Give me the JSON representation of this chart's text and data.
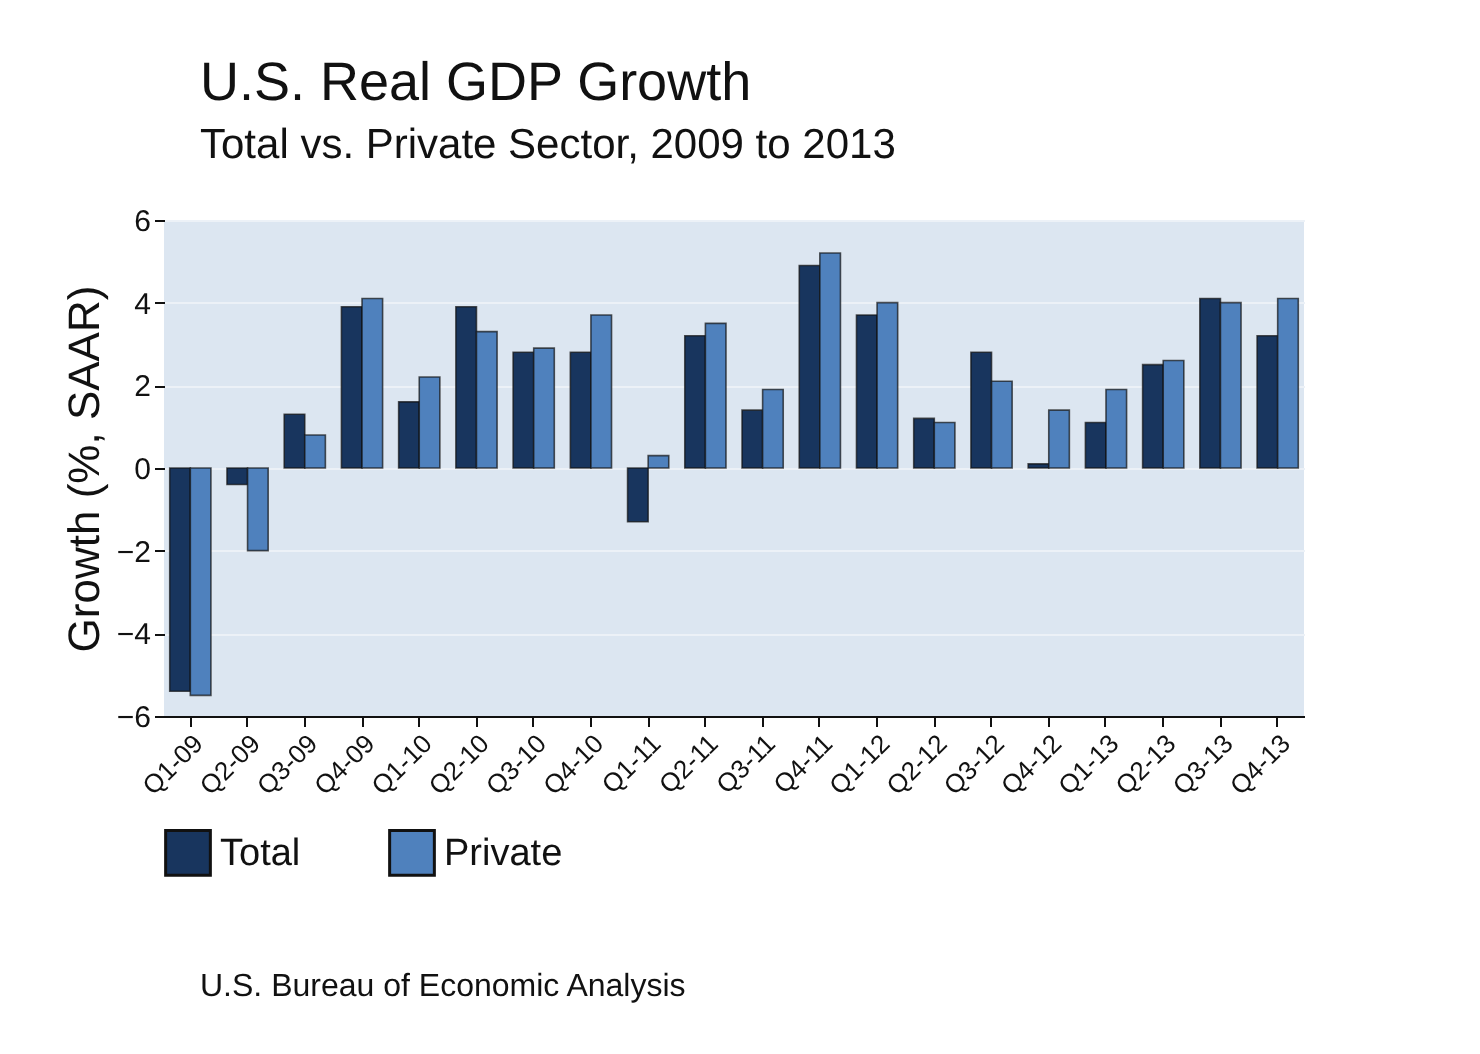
{
  "chart_data": {
    "type": "bar",
    "title": "U.S. Real GDP Growth",
    "subtitle": "Total vs. Private Sector, 2009 to 2013",
    "ylabel": "Growth (%, SAAR)",
    "categories": [
      "Q1-09",
      "Q2-09",
      "Q3-09",
      "Q4-09",
      "Q1-10",
      "Q2-10",
      "Q3-10",
      "Q4-10",
      "Q1-11",
      "Q2-11",
      "Q3-11",
      "Q4-11",
      "Q1-12",
      "Q2-12",
      "Q3-12",
      "Q4-12",
      "Q1-13",
      "Q2-13",
      "Q3-13",
      "Q4-13"
    ],
    "series": [
      {
        "name": "Total",
        "color": "#18355e",
        "values": [
          -5.4,
          -0.4,
          1.3,
          3.9,
          1.6,
          3.9,
          2.8,
          2.8,
          -1.3,
          3.2,
          1.4,
          4.9,
          3.7,
          1.2,
          2.8,
          0.1,
          1.1,
          2.5,
          4.1,
          3.2
        ]
      },
      {
        "name": "Private",
        "color": "#4f81bd",
        "values": [
          -5.5,
          -2.0,
          0.8,
          4.1,
          2.2,
          3.3,
          2.9,
          3.7,
          0.3,
          3.5,
          1.9,
          5.2,
          4.0,
          1.1,
          2.1,
          1.4,
          1.9,
          2.6,
          4.0,
          4.1
        ]
      }
    ],
    "ylim": [
      -6,
      6
    ],
    "yticks": [
      -6,
      -4,
      -2,
      0,
      2,
      4,
      6
    ],
    "grid": "y",
    "legend": "bottom",
    "annotations": [
      "U.S. Bureau of Economic Analysis"
    ]
  }
}
